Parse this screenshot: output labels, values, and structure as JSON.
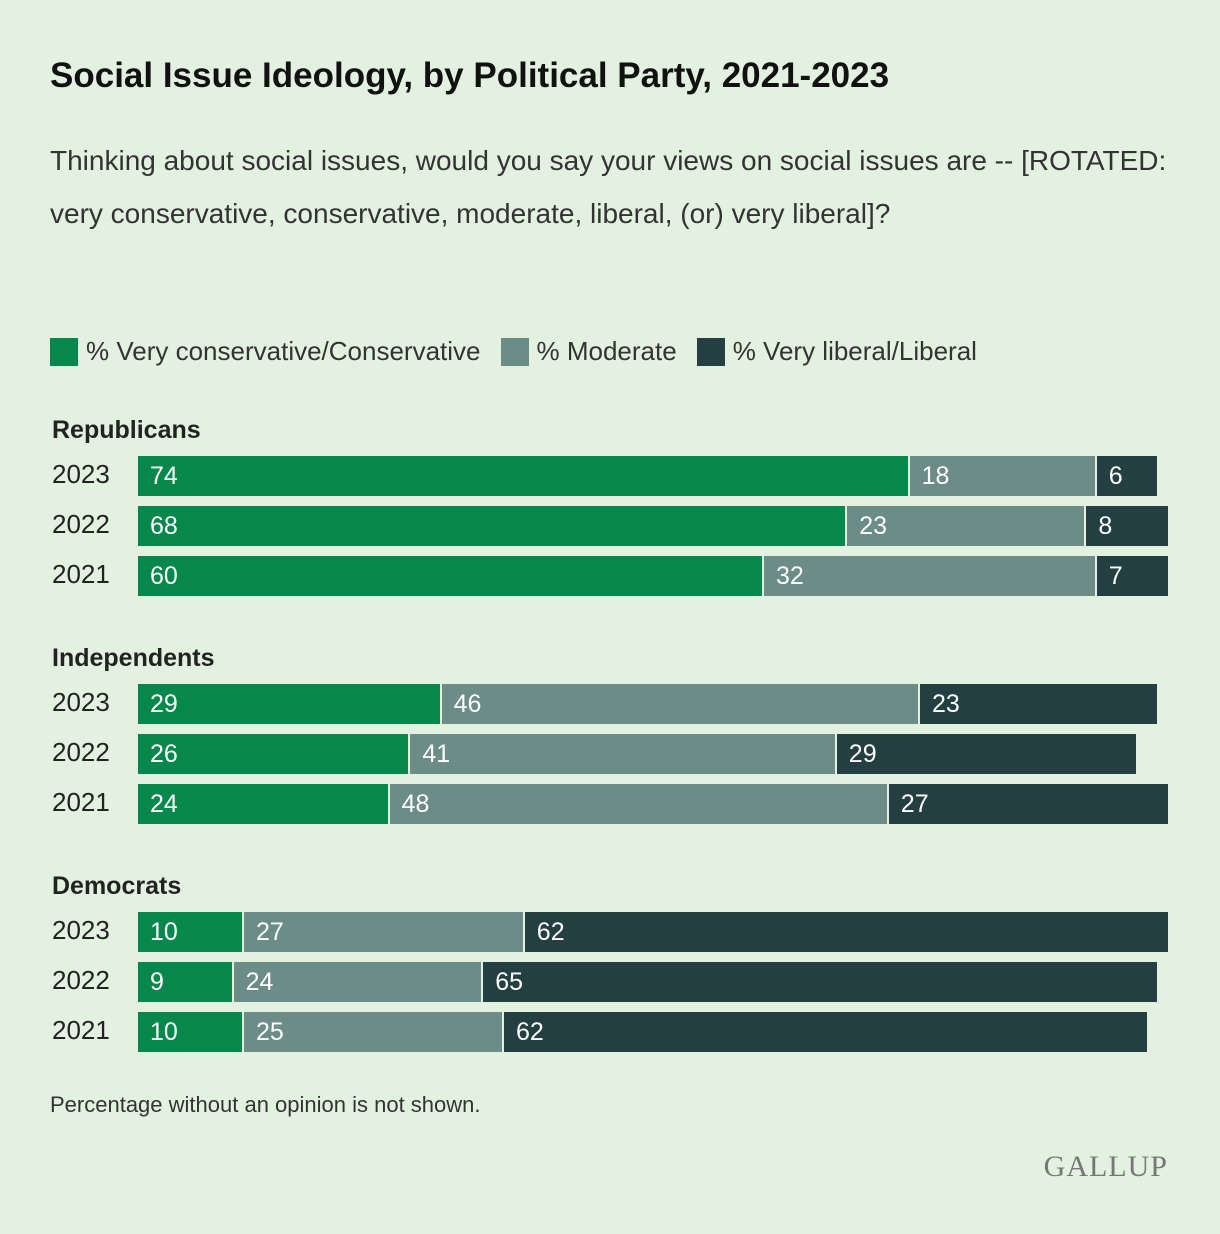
{
  "chart_data": {
    "type": "bar",
    "orientation": "horizontal-stacked",
    "title": "Social Issue Ideology, by Political Party, 2021-2023",
    "subtitle": "Thinking about social issues, would you say your views on social issues are -- [ROTATED: very conservative, conservative, moderate, liberal, (or) very liberal]?",
    "legend": [
      {
        "label": "% Very conservative/Conservative",
        "color": "#06874b"
      },
      {
        "label": "% Moderate",
        "color": "#6b8c87"
      },
      {
        "label": "% Very liberal/Liberal",
        "color": "#243f42"
      }
    ],
    "legend_placement": "top-left",
    "xlim": [
      0,
      100
    ],
    "groups": [
      {
        "name": "Republicans",
        "rows": [
          {
            "year": "2023",
            "values": [
              74,
              18,
              6
            ]
          },
          {
            "year": "2022",
            "values": [
              68,
              23,
              8
            ]
          },
          {
            "year": "2021",
            "values": [
              60,
              32,
              7
            ]
          }
        ]
      },
      {
        "name": "Independents",
        "rows": [
          {
            "year": "2023",
            "values": [
              29,
              46,
              23
            ]
          },
          {
            "year": "2022",
            "values": [
              26,
              41,
              29
            ]
          },
          {
            "year": "2021",
            "values": [
              24,
              48,
              27
            ]
          }
        ]
      },
      {
        "name": "Democrats",
        "rows": [
          {
            "year": "2023",
            "values": [
              10,
              27,
              62
            ]
          },
          {
            "year": "2022",
            "values": [
              9,
              24,
              65
            ]
          },
          {
            "year": "2021",
            "values": [
              10,
              25,
              62
            ]
          }
        ]
      }
    ],
    "note": "Percentage without an opinion is not shown."
  },
  "brand": "GALLUP"
}
